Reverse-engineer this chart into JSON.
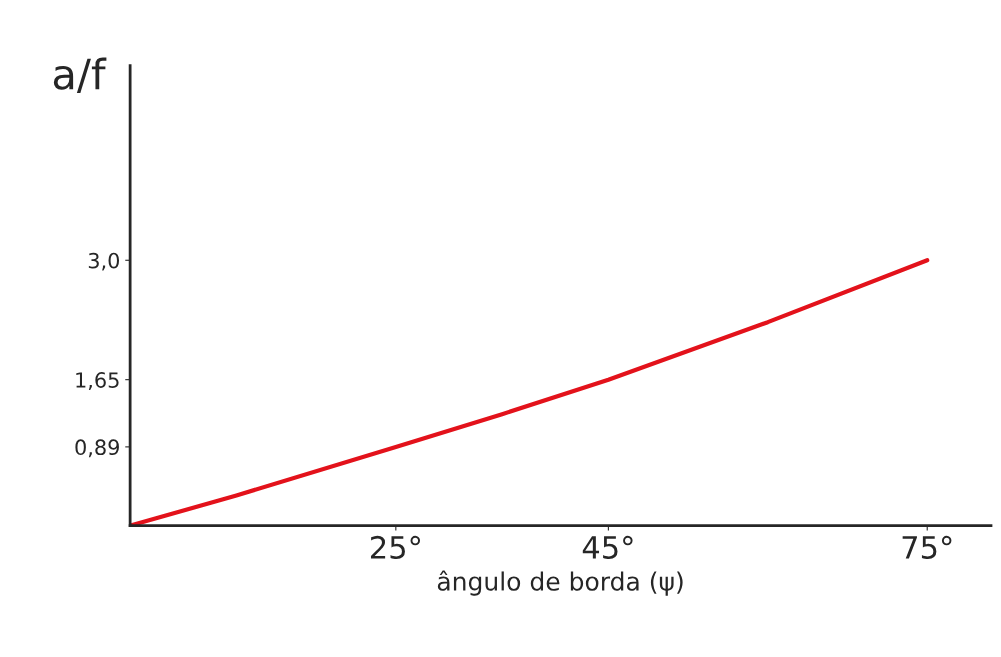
{
  "chart_data": {
    "type": "line",
    "xlabel": "ângulo de borda (ψ)",
    "ylabel": "a/f",
    "x": [
      0,
      10,
      25,
      35,
      45,
      60,
      75
    ],
    "series": [
      {
        "color": "#e3121b",
        "values": [
          0,
          0.34,
          0.89,
          1.26,
          1.65,
          2.3,
          3.0
        ]
      }
    ],
    "xlim": [
      0,
      81
    ],
    "ylim": [
      0,
      5.2
    ],
    "xticks": [
      {
        "value": 25,
        "label": "25°"
      },
      {
        "value": 45,
        "label": "45°"
      },
      {
        "value": 75,
        "label": "75°"
      }
    ],
    "yticks": [
      {
        "value": 0.89,
        "label": "0,89"
      },
      {
        "value": 1.65,
        "label": "1,65"
      },
      {
        "value": 3.0,
        "label": "3,0"
      }
    ],
    "grid": false,
    "marker": "none",
    "line_style": "solid"
  }
}
